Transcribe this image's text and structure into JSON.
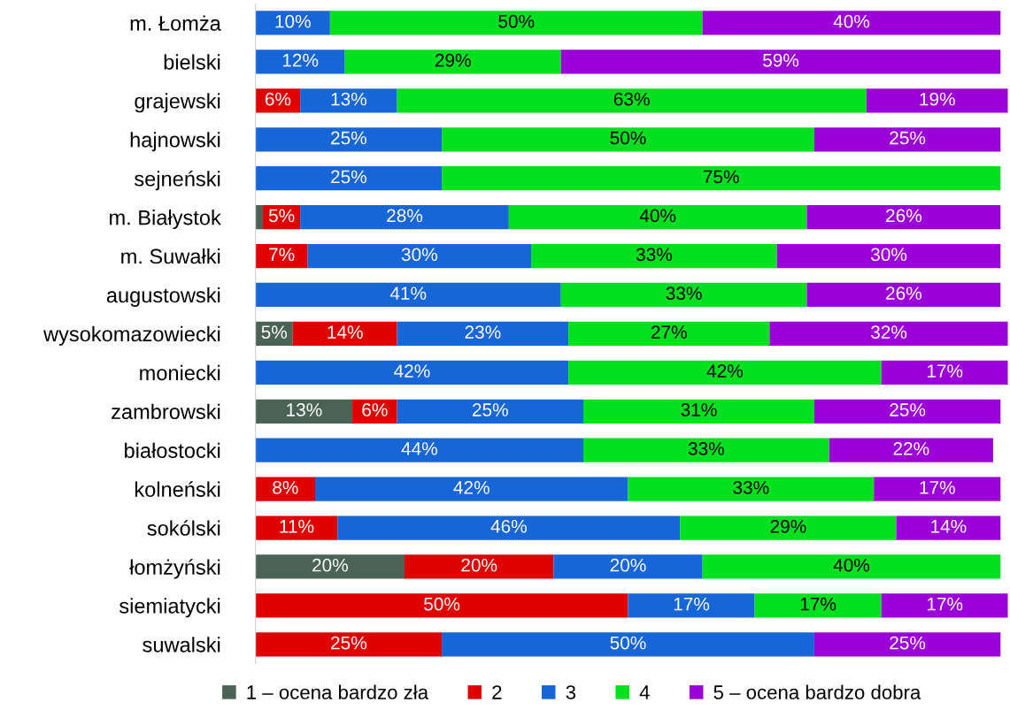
{
  "chart_data": {
    "type": "bar",
    "orientation": "horizontal",
    "stacked": true,
    "legend": "bottom",
    "grid": false,
    "tick_labels": "y",
    "xlim": [
      0,
      101
    ],
    "categories": [
      "m. Łomża",
      "bielski",
      "grajewski",
      "hajnowski",
      "sejneński",
      "m. Białystok",
      "m. Suwałki",
      "augustowski",
      "wysokomazowiecki",
      "moniecki",
      "zambrowski",
      "białostocki",
      "kolneński",
      "sokólski",
      "łomżyński",
      "siemiatycki",
      "suwalski"
    ],
    "series": [
      {
        "name": "1 – ocena bardzo zła",
        "color": "#4a6356",
        "values": [
          null,
          null,
          null,
          null,
          null,
          1,
          null,
          null,
          5,
          null,
          13,
          null,
          null,
          null,
          20,
          null,
          null
        ],
        "value_labels": [
          null,
          null,
          null,
          null,
          null,
          null,
          null,
          null,
          "5%",
          null,
          "13%",
          null,
          null,
          null,
          "20%",
          null,
          null
        ]
      },
      {
        "name": "2",
        "color": "#e00000",
        "values": [
          null,
          null,
          6,
          null,
          null,
          5,
          7,
          null,
          14,
          null,
          6,
          null,
          8,
          11,
          20,
          50,
          25
        ],
        "value_labels": [
          null,
          null,
          "6%",
          null,
          null,
          "5%",
          "7%",
          null,
          "14%",
          null,
          "6%",
          null,
          "8%",
          "11%",
          "20%",
          "50%",
          "25%"
        ]
      },
      {
        "name": "3",
        "color": "#1666d8",
        "values": [
          10,
          12,
          13,
          25,
          25,
          28,
          30,
          41,
          23,
          42,
          25,
          44,
          42,
          46,
          20,
          17,
          50
        ],
        "value_labels": [
          "10%",
          "12%",
          "13%",
          "25%",
          "25%",
          "28%",
          "30%",
          "41%",
          "23%",
          "42%",
          "25%",
          "44%",
          "42%",
          "46%",
          "20%",
          "17%",
          "50%"
        ]
      },
      {
        "name": "4",
        "color": "#00e01e",
        "values": [
          50,
          29,
          63,
          50,
          75,
          40,
          33,
          33,
          27,
          42,
          31,
          33,
          33,
          29,
          40,
          17,
          null
        ],
        "value_labels": [
          "50%",
          "29%",
          "63%",
          "50%",
          "75%",
          "40%",
          "33%",
          "33%",
          "27%",
          "42%",
          "31%",
          "33%",
          "33%",
          "29%",
          "40%",
          "17%",
          null
        ]
      },
      {
        "name": "5 – ocena bardzo dobra",
        "color": "#9b00d8",
        "values": [
          40,
          59,
          19,
          25,
          null,
          26,
          30,
          26,
          32,
          17,
          25,
          22,
          17,
          14,
          null,
          17,
          25
        ],
        "value_labels": [
          "40%",
          "59%",
          "19%",
          "25%",
          null,
          "26%",
          "30%",
          "26%",
          "32%",
          "17%",
          "25%",
          "22%",
          "17%",
          "14%",
          null,
          "17%",
          "25%"
        ]
      }
    ]
  }
}
